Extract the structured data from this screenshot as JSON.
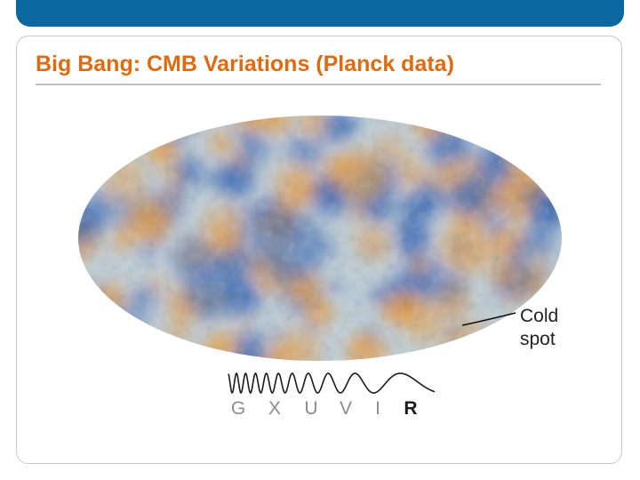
{
  "slide": {
    "title": "Big Bang: CMB Variations (Planck data)",
    "colors": {
      "header_bar": "#0b67a0",
      "title": "#e06a10",
      "cmb_orange": "#e89a3c",
      "cmb_blue": "#2f62b4",
      "band_inactive": "#8c8c8c",
      "band_active": "#1a1a1a"
    }
  },
  "map": {
    "icon": "cmb-all-sky-map",
    "annotation": {
      "line1": "Cold",
      "line2": "spot"
    }
  },
  "spectrum": {
    "bands": [
      {
        "label": "G",
        "active": false
      },
      {
        "label": "X",
        "active": false
      },
      {
        "label": "U",
        "active": false
      },
      {
        "label": "V",
        "active": false
      },
      {
        "label": "I",
        "active": false
      },
      {
        "label": "R",
        "active": true
      }
    ]
  }
}
